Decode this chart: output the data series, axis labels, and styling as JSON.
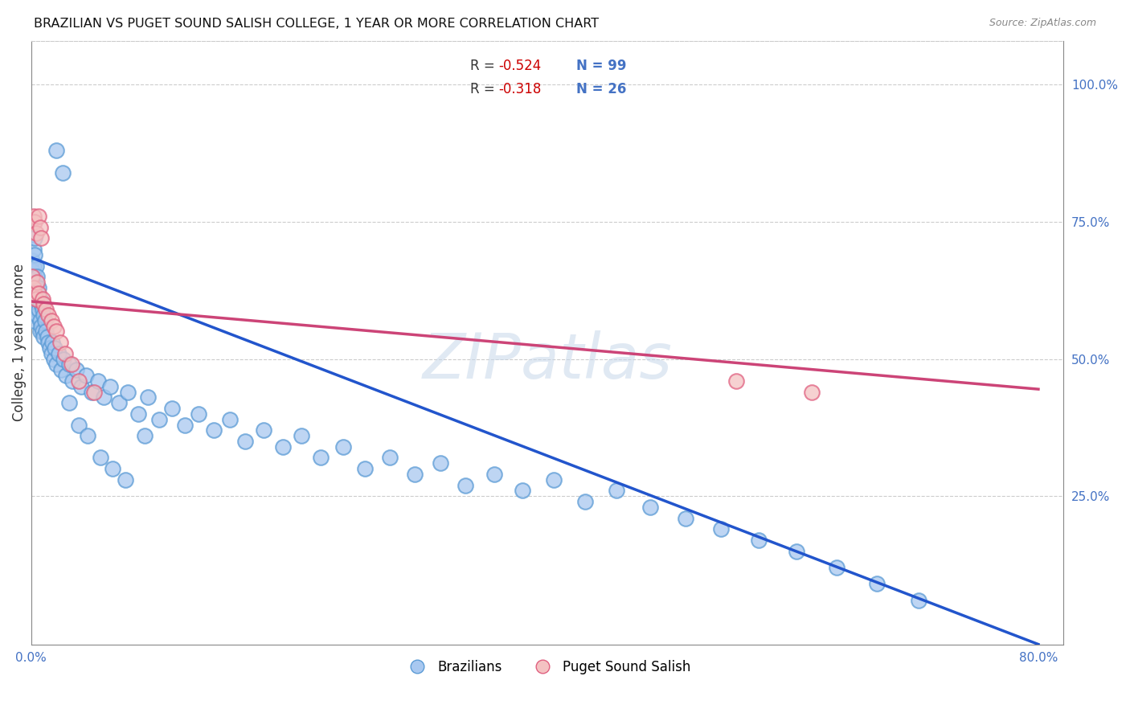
{
  "title": "BRAZILIAN VS PUGET SOUND SALISH COLLEGE, 1 YEAR OR MORE CORRELATION CHART",
  "source": "Source: ZipAtlas.com",
  "ylabel": "College, 1 year or more",
  "xlim": [
    0.0,
    0.82
  ],
  "ylim": [
    -0.02,
    1.08
  ],
  "blue_face": "#a8c8f0",
  "blue_edge": "#5b9bd5",
  "pink_face": "#f4c2c2",
  "pink_edge": "#e06080",
  "blue_line_color": "#2255cc",
  "pink_line_color": "#cc4477",
  "legend_label1": "Brazilians",
  "legend_label2": "Puget Sound Salish",
  "watermark": "ZIPatlas",
  "blue_scatter_x": [
    0.001,
    0.001,
    0.001,
    0.001,
    0.001,
    0.002,
    0.002,
    0.002,
    0.002,
    0.002,
    0.002,
    0.002,
    0.003,
    0.003,
    0.003,
    0.003,
    0.004,
    0.004,
    0.004,
    0.005,
    0.005,
    0.005,
    0.006,
    0.006,
    0.007,
    0.007,
    0.007,
    0.008,
    0.008,
    0.009,
    0.009,
    0.01,
    0.01,
    0.011,
    0.012,
    0.013,
    0.014,
    0.015,
    0.016,
    0.017,
    0.018,
    0.019,
    0.02,
    0.022,
    0.024,
    0.026,
    0.028,
    0.03,
    0.033,
    0.036,
    0.04,
    0.044,
    0.048,
    0.053,
    0.058,
    0.063,
    0.07,
    0.077,
    0.085,
    0.093,
    0.102,
    0.112,
    0.122,
    0.133,
    0.145,
    0.158,
    0.17,
    0.185,
    0.2,
    0.215,
    0.23,
    0.248,
    0.265,
    0.285,
    0.305,
    0.325,
    0.345,
    0.368,
    0.39,
    0.415,
    0.44,
    0.465,
    0.492,
    0.52,
    0.548,
    0.578,
    0.608,
    0.64,
    0.672,
    0.705,
    0.02,
    0.025,
    0.03,
    0.038,
    0.045,
    0.055,
    0.065,
    0.075,
    0.09
  ],
  "blue_scatter_y": [
    0.68,
    0.66,
    0.64,
    0.63,
    0.61,
    0.7,
    0.67,
    0.65,
    0.62,
    0.6,
    0.58,
    0.57,
    0.72,
    0.69,
    0.65,
    0.62,
    0.67,
    0.63,
    0.59,
    0.65,
    0.61,
    0.58,
    0.63,
    0.59,
    0.61,
    0.57,
    0.55,
    0.6,
    0.56,
    0.59,
    0.55,
    0.58,
    0.54,
    0.57,
    0.55,
    0.54,
    0.53,
    0.52,
    0.51,
    0.53,
    0.5,
    0.52,
    0.49,
    0.51,
    0.48,
    0.5,
    0.47,
    0.49,
    0.46,
    0.48,
    0.45,
    0.47,
    0.44,
    0.46,
    0.43,
    0.45,
    0.42,
    0.44,
    0.4,
    0.43,
    0.39,
    0.41,
    0.38,
    0.4,
    0.37,
    0.39,
    0.35,
    0.37,
    0.34,
    0.36,
    0.32,
    0.34,
    0.3,
    0.32,
    0.29,
    0.31,
    0.27,
    0.29,
    0.26,
    0.28,
    0.24,
    0.26,
    0.23,
    0.21,
    0.19,
    0.17,
    0.15,
    0.12,
    0.09,
    0.06,
    0.88,
    0.84,
    0.42,
    0.38,
    0.36,
    0.32,
    0.3,
    0.28,
    0.36
  ],
  "pink_scatter_x": [
    0.001,
    0.002,
    0.002,
    0.003,
    0.003,
    0.004,
    0.004,
    0.005,
    0.006,
    0.006,
    0.007,
    0.008,
    0.009,
    0.01,
    0.012,
    0.014,
    0.016,
    0.018,
    0.02,
    0.023,
    0.027,
    0.032,
    0.038,
    0.05,
    0.56,
    0.62
  ],
  "pink_scatter_y": [
    0.65,
    0.76,
    0.63,
    0.75,
    0.62,
    0.73,
    0.61,
    0.64,
    0.76,
    0.62,
    0.74,
    0.72,
    0.61,
    0.6,
    0.59,
    0.58,
    0.57,
    0.56,
    0.55,
    0.53,
    0.51,
    0.49,
    0.46,
    0.44,
    0.46,
    0.44
  ],
  "blue_line_x": [
    0.0,
    0.8
  ],
  "blue_line_y": [
    0.685,
    -0.02
  ],
  "pink_line_x": [
    0.0,
    0.8
  ],
  "pink_line_y": [
    0.605,
    0.445
  ]
}
